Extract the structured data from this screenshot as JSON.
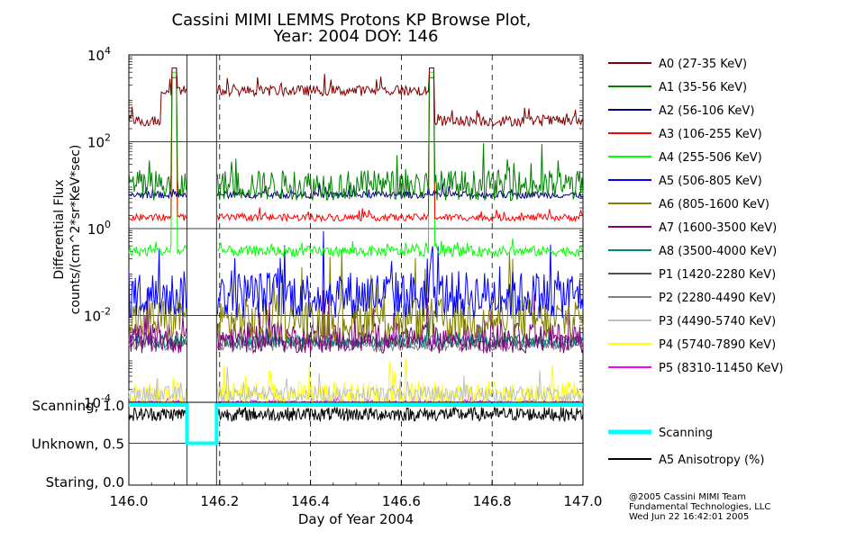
{
  "title_line1": "Cassini MIMI LEMMS Protons KP Browse Plot,",
  "title_line2": "Year: 2004 DOY: 146",
  "credit": [
    "@2005 Cassini MIMI Team",
    "Fundamental Technologies, LLC",
    "Wed Jun 22 16:42:01 2005"
  ],
  "chart_data": [
    {
      "type": "line",
      "xlabel": "Day of Year 2004",
      "ylabel_line1": "Differential Flux",
      "ylabel_line2": "counts/(cm^2*sr*KeV*sec)",
      "y_scale": "log",
      "xlim": [
        146.0,
        147.0
      ],
      "ylim": [
        0.0001,
        10000
      ],
      "x_ticks": [
        "146.0",
        "146.2",
        "146.4",
        "146.6",
        "146.8",
        "147.0"
      ],
      "y_ticks": [
        {
          "base": "10",
          "exp": "4"
        },
        {
          "base": "10",
          "exp": "2"
        },
        {
          "base": "10",
          "exp": "0"
        },
        {
          "base": "10",
          "exp": "-2"
        },
        {
          "base": "10",
          "exp": "-4"
        }
      ],
      "gaps": [
        [
          146.128,
          146.193
        ]
      ],
      "legend_position": "right",
      "series": [
        {
          "name": "A0 (27-35 KeV)",
          "color": "#800000",
          "level": 300,
          "spread": 0.12,
          "spikes": [
            {
              "x": 146.1,
              "v": 5000
            },
            {
              "x": 146.667,
              "v": 5000
            }
          ],
          "elevated": [
            [
              146.07,
              146.667,
              1500
            ]
          ]
        },
        {
          "name": "A1 (35-56 KeV)",
          "color": "#008000",
          "level": 10,
          "spread": 0.35,
          "spikes": [
            {
              "x": 146.1,
              "v": 3000
            },
            {
              "x": 146.667,
              "v": 3000
            }
          ],
          "elevated": []
        },
        {
          "name": "A2 (56-106 KeV)",
          "color": "#000080",
          "level": 6,
          "spread": 0.08,
          "spikes": [],
          "elevated": []
        },
        {
          "name": "A3 (106-255 KeV)",
          "color": "#ff0000",
          "level": 1.8,
          "spread": 0.08,
          "spikes": [
            {
              "x": 146.1,
              "v": 5000
            },
            {
              "x": 146.667,
              "v": 5000
            }
          ],
          "elevated": []
        },
        {
          "name": "A4 (255-506 KeV)",
          "color": "#00ff00",
          "level": 0.3,
          "spread": 0.12,
          "spikes": [
            {
              "x": 146.1,
              "v": 4000
            },
            {
              "x": 146.667,
              "v": 4000
            }
          ],
          "elevated": []
        },
        {
          "name": "A5 (506-805 KeV)",
          "color": "#0000ff",
          "level": 0.03,
          "spread": 0.55,
          "spikes": [],
          "elevated": []
        },
        {
          "name": "A6 (805-1600 KeV)",
          "color": "#808000",
          "level": 0.008,
          "spread": 0.5,
          "spikes": [],
          "elevated": []
        },
        {
          "name": "A7 (1600-3500 KeV)",
          "color": "#800080",
          "level": 0.003,
          "spread": 0.35,
          "spikes": [],
          "elevated": []
        },
        {
          "name": "A8 (3500-4000 KeV)",
          "color": "#008080",
          "level": 0.0025,
          "spread": 0.15,
          "spikes": [],
          "elevated": []
        },
        {
          "name": "P1 (1420-2280 KeV)",
          "color": "#505050",
          "level": 0.0025,
          "spread": 0.12,
          "spikes": [],
          "elevated": []
        },
        {
          "name": "P2 (2280-4490 KeV)",
          "color": "#808080",
          "level": 0.002,
          "spread": 0.12,
          "spikes": [],
          "elevated": []
        },
        {
          "name": "P3 (4490-5740 KeV)",
          "color": "#c0c0c0",
          "level": 0.00015,
          "spread": 0.2,
          "spikes": [],
          "elevated": []
        },
        {
          "name": "P4 (5740-7890 KeV)",
          "color": "#ffff00",
          "level": 0.00015,
          "spread": 0.3,
          "spikes": [],
          "elevated": []
        },
        {
          "name": "P5 (8310-11450 KeV)",
          "color": "#ff00ff",
          "level": 0.0001,
          "spread": 0.05,
          "spikes": [],
          "elevated": []
        }
      ]
    },
    {
      "type": "line",
      "xlim": [
        146.0,
        147.0
      ],
      "ylim": [
        0.0,
        1.0
      ],
      "y_ticks": [
        {
          "label": "Scanning, 1.0",
          "value": 1.0
        },
        {
          "label": "Unknown, 0.5",
          "value": 0.5
        },
        {
          "label": "Staring, 0.0",
          "value": 0.0
        }
      ],
      "x_ticks": [
        "146.0",
        "146.2",
        "146.4",
        "146.6",
        "146.8",
        "147.0"
      ],
      "series": [
        {
          "name": "Scanning",
          "color": "#00ffff",
          "x": [
            146.0,
            146.128,
            146.128,
            146.193,
            146.193,
            147.0
          ],
          "y": [
            1.0,
            1.0,
            0.5,
            0.5,
            1.0,
            1.0
          ]
        },
        {
          "name": "A5 Anisotropy (%)",
          "color": "#000000",
          "level": 0.88,
          "amplitude": 0.09,
          "gaps": [
            [
              146.128,
              146.193
            ]
          ]
        }
      ]
    }
  ]
}
